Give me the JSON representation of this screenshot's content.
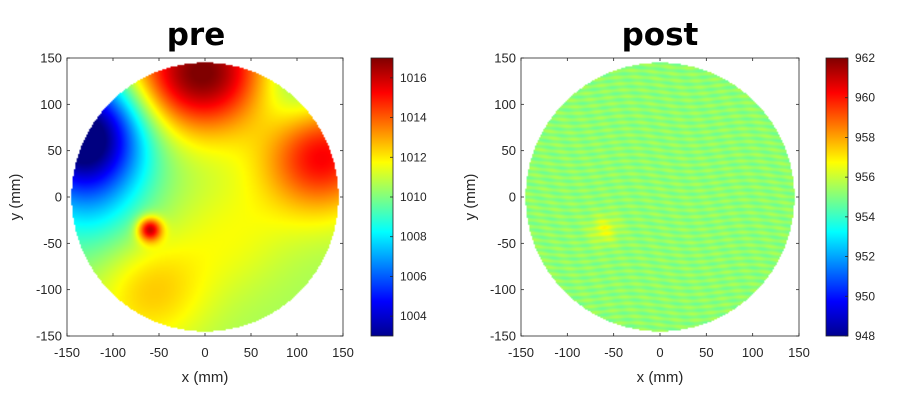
{
  "chart_data": [
    {
      "type": "heatmap",
      "title": "pre",
      "xlabel": "x (mm)",
      "ylabel": "y (mm)",
      "xlim": [
        -150,
        150
      ],
      "ylim": [
        -150,
        150
      ],
      "xticks": [
        "-150",
        "-100",
        "-50",
        "0",
        "50",
        "100",
        "150"
      ],
      "yticks": [
        "150",
        "100",
        "50",
        "0",
        "-50",
        "-100",
        "-150"
      ],
      "colorbar": {
        "range": [
          1003,
          1017
        ],
        "ticks": [
          "1016",
          "1014",
          "1012",
          "1010",
          "1008",
          "1006",
          "1004"
        ],
        "colormap": "jet"
      },
      "wafer_radius_mm": 145,
      "base_value": 1010.5,
      "features": [
        {
          "x": -135,
          "y": 60,
          "value": 1003.5
        },
        {
          "x": -100,
          "y": 95,
          "value": 1008
        },
        {
          "x": 20,
          "y": 135,
          "value": 1015.5
        },
        {
          "x": -45,
          "y": 128,
          "value": 1014.5
        },
        {
          "x": 125,
          "y": 50,
          "value": 1016
        },
        {
          "x": 100,
          "y": 110,
          "value": 1008
        },
        {
          "x": -60,
          "y": -35,
          "value": 1016
        },
        {
          "x": -60,
          "y": -100,
          "value": 1012.5
        },
        {
          "x": 30,
          "y": -40,
          "value": 1011.5
        },
        {
          "x": -120,
          "y": -20,
          "value": 1009
        }
      ]
    },
    {
      "type": "heatmap",
      "title": "post",
      "xlabel": "x (mm)",
      "ylabel": "y (mm)",
      "xlim": [
        -150,
        150
      ],
      "ylim": [
        -150,
        150
      ],
      "xticks": [
        "-150",
        "-100",
        "-50",
        "0",
        "50",
        "100",
        "150"
      ],
      "yticks": [
        "150",
        "100",
        "50",
        "0",
        "-50",
        "-100",
        "-150"
      ],
      "colorbar": {
        "range": [
          948,
          962
        ],
        "ticks": [
          "962",
          "960",
          "958",
          "956",
          "954",
          "952",
          "950",
          "948"
        ],
        "colormap": "jet"
      },
      "wafer_radius_mm": 145,
      "base_value": 955.2,
      "features": [
        {
          "x": -60,
          "y": -35,
          "value": 956.5
        }
      ]
    }
  ]
}
